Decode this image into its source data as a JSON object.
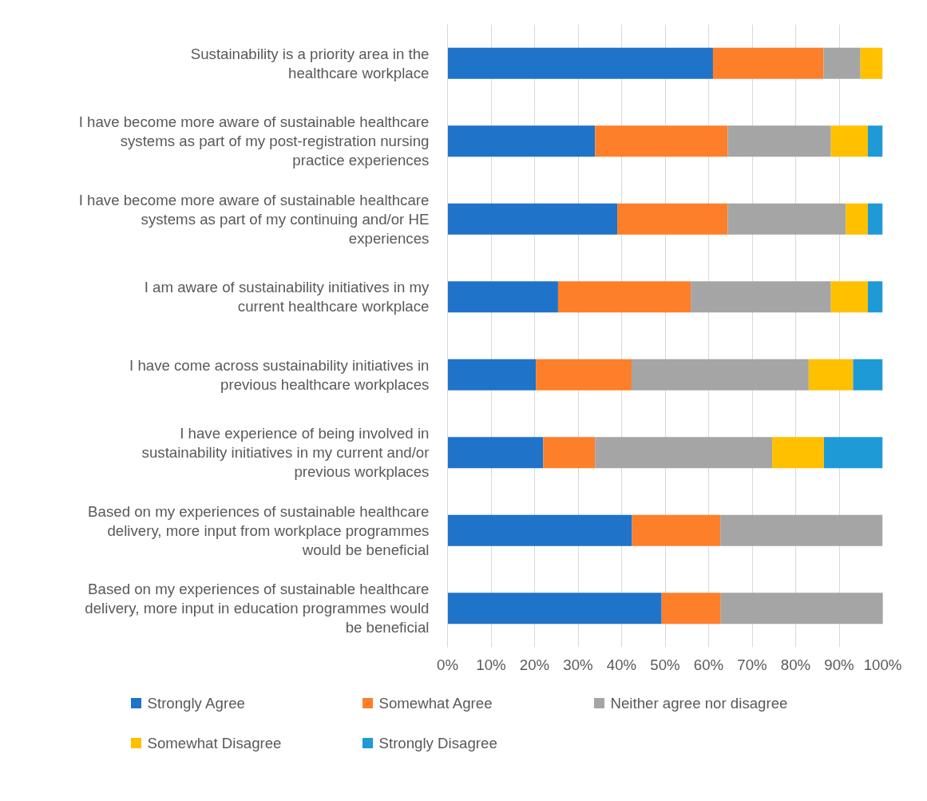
{
  "chart_data": {
    "type": "bar",
    "orientation": "horizontal",
    "stacked": true,
    "categories": [
      "Sustainability is a priority area in the healthcare workplace",
      "I have become more aware of sustainable healthcare systems as part of my post-registration nursing practice experiences",
      "I have become more aware of sustainable healthcare systems as part of my continuing and/or HE experiences",
      "I am aware of sustainability initiatives in my current healthcare workplace",
      "I have come across sustainability initiatives in previous healthcare workplaces",
      "I have experience of being involved in sustainability initiatives in my current and/or previous workplaces",
      "Based on my experiences of sustainable healthcare delivery, more input from workplace programmes would be beneficial",
      "Based on my experiences of sustainable healthcare delivery, more input in education programmes would be beneficial"
    ],
    "series": [
      {
        "name": "Strongly Agree",
        "color": "#1f73c9",
        "values": [
          61.0,
          33.9,
          39.0,
          25.4,
          20.3,
          22.0,
          42.4,
          49.2
        ]
      },
      {
        "name": "Somewhat Agree",
        "color": "#fd7f2a",
        "values": [
          25.4,
          30.5,
          25.4,
          30.5,
          22.0,
          11.9,
          20.3,
          13.6
        ]
      },
      {
        "name": "Neither agree nor disagree",
        "color": "#a5a5a5",
        "values": [
          8.5,
          23.7,
          27.1,
          32.2,
          40.7,
          40.7,
          37.3,
          37.3
        ]
      },
      {
        "name": "Somewhat Disagree",
        "color": "#ffc000",
        "values": [
          5.1,
          8.5,
          5.1,
          8.5,
          10.2,
          11.9,
          0,
          0
        ]
      },
      {
        "name": "Strongly Disagree",
        "color": "#1e9ad6",
        "values": [
          0,
          3.4,
          3.4,
          3.4,
          6.8,
          13.6,
          0,
          0
        ]
      }
    ],
    "xlim": [
      0,
      100
    ],
    "xticks": [
      {
        "value": 0,
        "label": "0%"
      },
      {
        "value": 10,
        "label": "10%"
      },
      {
        "value": 20,
        "label": "20%"
      },
      {
        "value": 30,
        "label": "30%"
      },
      {
        "value": 40,
        "label": "40%"
      },
      {
        "value": 50,
        "label": "50%"
      },
      {
        "value": 60,
        "label": "60%"
      },
      {
        "value": 70,
        "label": "70%"
      },
      {
        "value": 80,
        "label": "80%"
      },
      {
        "value": 90,
        "label": "90%"
      },
      {
        "value": 100,
        "label": "100%"
      }
    ],
    "grid": "x",
    "legend": "bottom"
  }
}
